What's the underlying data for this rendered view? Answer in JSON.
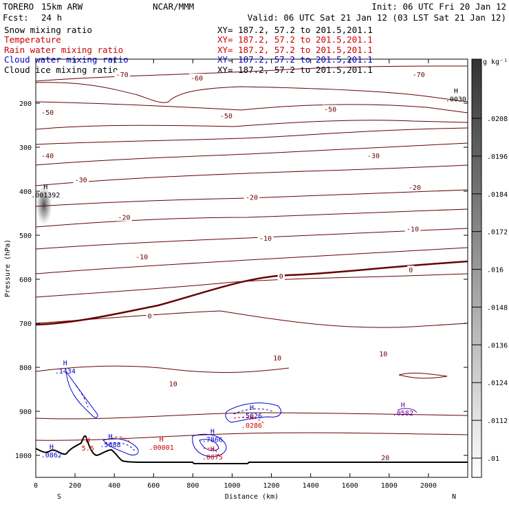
{
  "header": {
    "model": "TORERO",
    "resolution": "15km ARW",
    "center": "NCAR/MMM",
    "init": "Init: 06 UTC Fri 20 Jan 12",
    "fcst_label": "Fcst:",
    "fcst_value": "24 h",
    "valid": "Valid: 06 UTC Sat 21 Jan 12 (03 LST Sat 21 Jan 12)"
  },
  "legend": [
    {
      "name": "Snow mixing ratio",
      "color": "#000000",
      "xy": "XY= 187.2, 57.2 to 201.5,201.1"
    },
    {
      "name": "Temperature",
      "color": "#cc0000",
      "xy": "XY= 187.2, 57.2 to 201.5,201.1"
    },
    {
      "name": "Rain water mixing ratio",
      "color": "#cc0000",
      "xy": "XY= 187.2, 57.2 to 201.5,201.1"
    },
    {
      "name": "Cloud water mixing ratio",
      "color": "#0000cc",
      "xy": "XY= 187.2, 57.2 to 201.5,201.1"
    },
    {
      "name": "Cloud ice mixing ratio",
      "color": "#000000",
      "xy": "XY= 187.2, 57.2 to 201.5,201.1"
    }
  ],
  "colors": {
    "temperature": "#660000",
    "cloud_water": "#0000cc",
    "rain": "#cc0000",
    "cloud_ice": "#660099",
    "terrain": "#000000"
  },
  "chart_data": {
    "type": "cross-section",
    "xlabel": "Distance (km)",
    "ylabel": "Pressure (hPa)",
    "xlim": [
      0,
      2200
    ],
    "ylim": [
      1050,
      100
    ],
    "x_ticks": [
      0,
      200,
      400,
      600,
      800,
      1000,
      1200,
      1400,
      1600,
      1800,
      2000
    ],
    "y_ticks": [
      200,
      300,
      400,
      500,
      600,
      700,
      800,
      900,
      1000
    ],
    "endpoints": {
      "left": "S",
      "right": "N"
    },
    "colorbar": {
      "unit": "g kg⁻¹",
      "ticks": [
        ".01",
        ".0112",
        ".0124",
        ".0136",
        ".0148",
        ".016",
        ".0172",
        ".0184",
        ".0196",
        ".0208"
      ]
    },
    "temperature_labels": [
      {
        "text": "-70",
        "x": 440,
        "p": 136
      },
      {
        "text": "-70",
        "x": 1950,
        "p": 136
      },
      {
        "text": "-60",
        "x": 820,
        "p": 144
      },
      {
        "text": "-50",
        "x": 60,
        "p": 222
      },
      {
        "text": "-50",
        "x": 970,
        "p": 230
      },
      {
        "text": "-50",
        "x": 1500,
        "p": 215
      },
      {
        "text": "-40",
        "x": 60,
        "p": 320
      },
      {
        "text": "-30",
        "x": 230,
        "p": 375
      },
      {
        "text": "-30",
        "x": 1720,
        "p": 320
      },
      {
        "text": "-20",
        "x": 450,
        "p": 460
      },
      {
        "text": "-20",
        "x": 1100,
        "p": 415
      },
      {
        "text": "-20",
        "x": 1930,
        "p": 392
      },
      {
        "text": "-10",
        "x": 540,
        "p": 550
      },
      {
        "text": "-10",
        "x": 1170,
        "p": 508
      },
      {
        "text": "-10",
        "x": 1920,
        "p": 487
      },
      {
        "text": "0",
        "x": 580,
        "p": 684
      },
      {
        "text": "0",
        "x": 1250,
        "p": 594
      },
      {
        "text": "0",
        "x": 1910,
        "p": 580
      },
      {
        "text": "10",
        "x": 1230,
        "p": 780
      },
      {
        "text": "10",
        "x": 1770,
        "p": 770
      },
      {
        "text": "10",
        "x": 700,
        "p": 838
      },
      {
        "text": "20",
        "x": 1780,
        "p": 1006
      }
    ],
    "extrema": [
      {
        "kind": "H",
        "value": ".0030",
        "x": 2140,
        "p": 187,
        "color": "#000000"
      },
      {
        "kind": "H",
        "value": ".001392",
        "x": 50,
        "p": 405,
        "color": "#000000"
      },
      {
        "kind": "H",
        "value": ".1434",
        "x": 150,
        "p": 805,
        "color": "#0000cc"
      },
      {
        "kind": "H",
        "value": ".5626",
        "x": 1100,
        "p": 906,
        "color": "#0000cc"
      },
      {
        "kind": "H",
        "value": ".0286",
        "x": 1100,
        "p": 928,
        "color": "#cc0000"
      },
      {
        "kind": "H",
        "value": ".7866",
        "x": 900,
        "p": 960,
        "color": "#0000cc"
      },
      {
        "kind": "H",
        "value": ".0075",
        "x": 900,
        "p": 1000,
        "color": "#cc0000"
      },
      {
        "kind": "H",
        "value": ".5688",
        "x": 380,
        "p": 972,
        "color": "#0000cc"
      },
      {
        "kind": "H",
        "value": ".00001",
        "x": 640,
        "p": 978,
        "color": "#cc0000"
      },
      {
        "kind": "H",
        "value": ".0582",
        "x": 1870,
        "p": 900,
        "color": "#660099"
      },
      {
        "kind": "H",
        "value": "5.6",
        "x": 265,
        "p": 980,
        "color": "#cc0000"
      },
      {
        "kind": "H",
        "value": ".0862",
        "x": 80,
        "p": 995,
        "color": "#0000cc"
      }
    ]
  }
}
